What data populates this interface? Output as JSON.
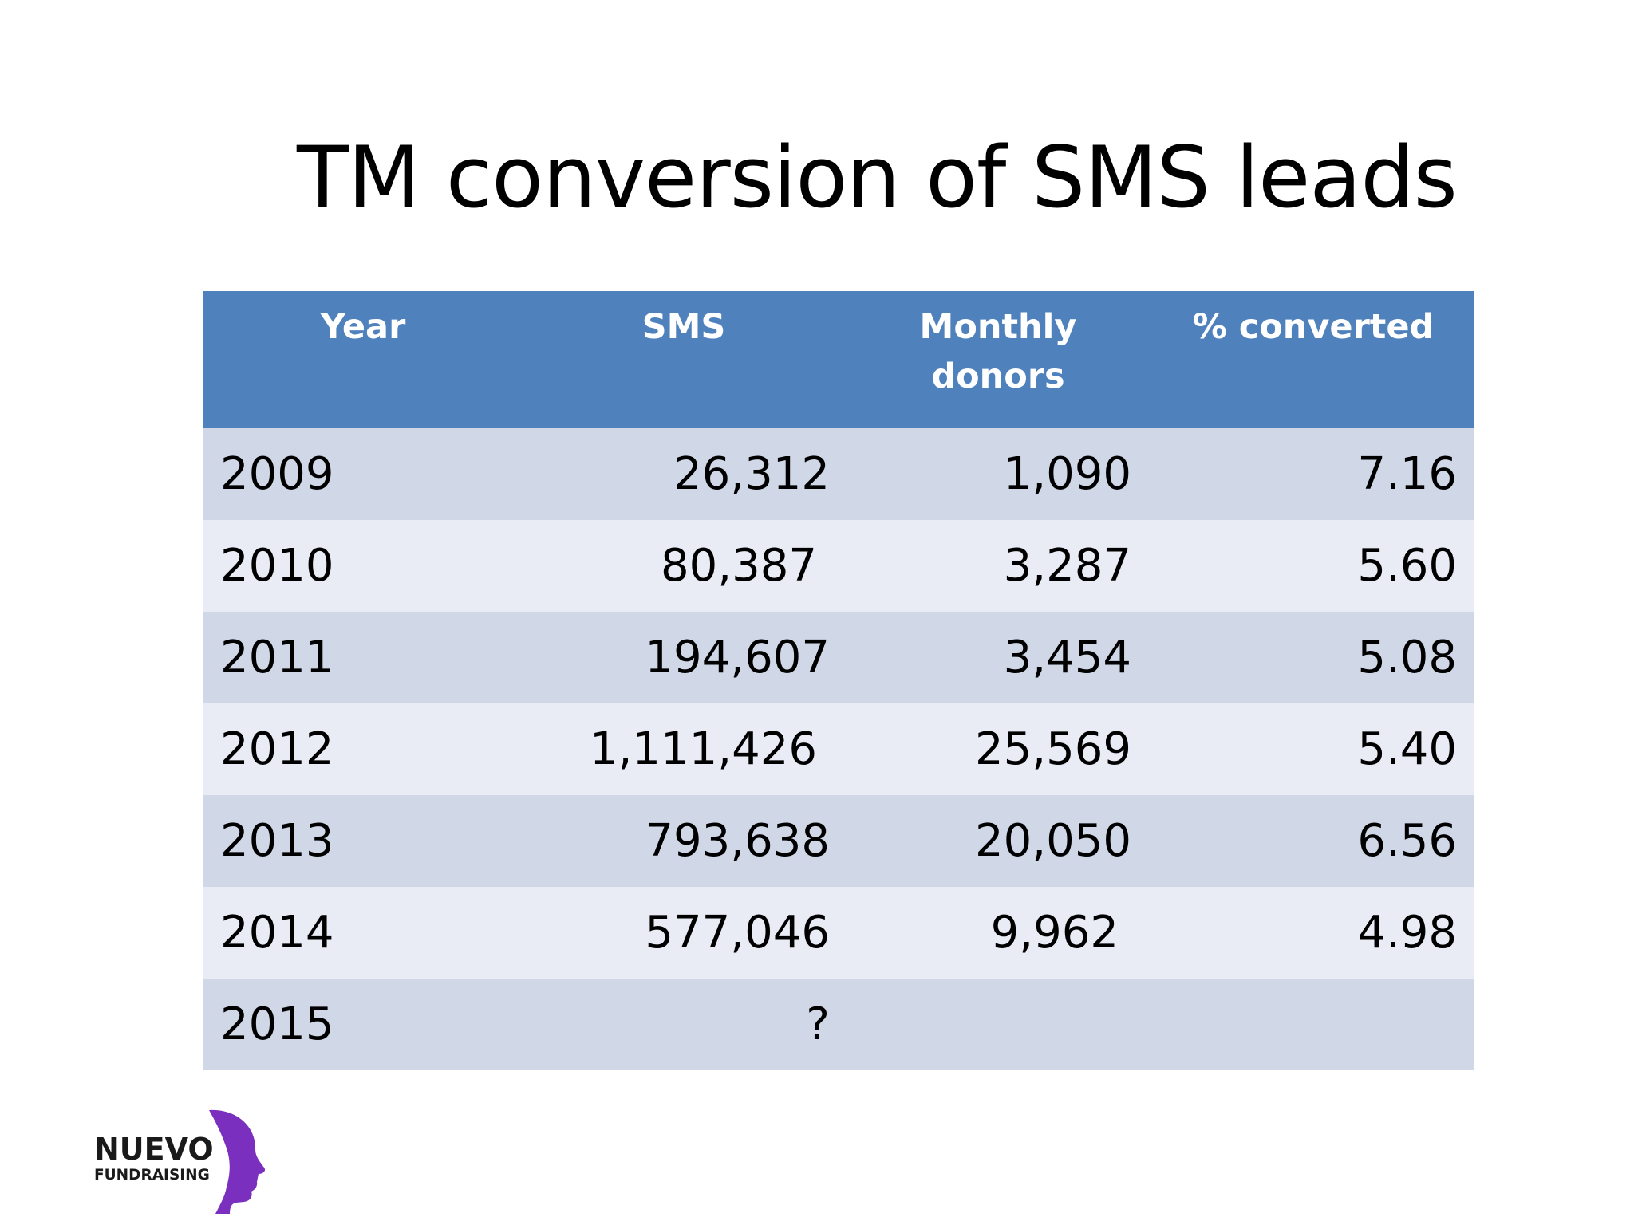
{
  "slide": {
    "title": "TM conversion of SMS leads"
  },
  "table": {
    "headers": {
      "year": "Year",
      "sms": "SMS",
      "donors_line1": "Monthly",
      "donors_line2": "donors",
      "pct": "% converted"
    },
    "rows": [
      {
        "year": "2009",
        "sms": "26,312",
        "donors": "1,090",
        "pct": "7.16"
      },
      {
        "year": "2010",
        "sms": "80,387",
        "donors": "3,287",
        "pct": "5.60"
      },
      {
        "year": "2011",
        "sms": "194,607",
        "donors": "3,454",
        "pct": "5.08"
      },
      {
        "year": "2012",
        "sms": "1,111,426",
        "donors": "25,569",
        "pct": "5.40"
      },
      {
        "year": "2013",
        "sms": "793,638",
        "donors": "20,050",
        "pct": "6.56"
      },
      {
        "year": "2014",
        "sms": "577,046",
        "donors": "9,962",
        "pct": "4.98"
      },
      {
        "year": "2015",
        "sms": "?",
        "donors": "",
        "pct": ""
      }
    ]
  },
  "logo": {
    "line1": "NUEVO",
    "line2": "FUNDRAISING",
    "text_color": "#1a1a1a",
    "accent_color": "#7b2fbe"
  },
  "colors": {
    "header_bg": "#4f81bd",
    "row_odd": "#d0d8e8",
    "row_even": "#e9ebf5"
  }
}
